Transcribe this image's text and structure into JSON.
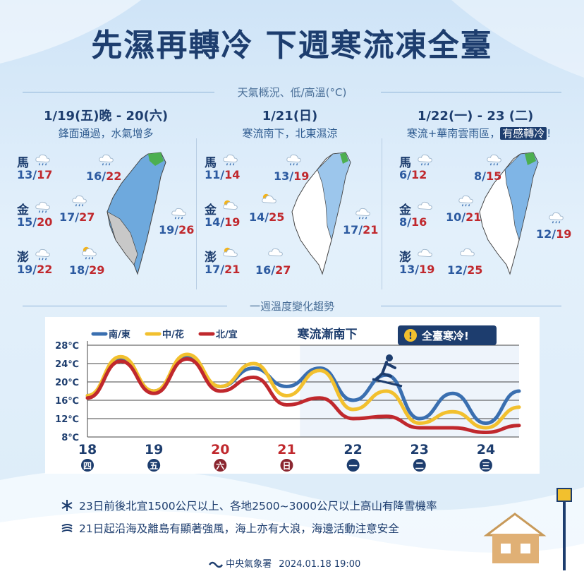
{
  "title": "先濕再轉冷 下週寒流凍全臺",
  "section1_label": "天氣概況、低/高溫(°C)",
  "section2_label": "一週溫度變化趨勢",
  "panels": [
    {
      "title": "1/19(五)晚 - 20(六)",
      "subtitle": "鋒面通過，水氣增多",
      "islands": [
        {
          "name": "馬",
          "low": "13",
          "high": "17",
          "icon": "rain-icon"
        },
        {
          "name": "金",
          "low": "15",
          "high": "20",
          "icon": "rain-icon"
        },
        {
          "name": "澎",
          "low": "19",
          "high": "22",
          "icon": "rain-icon"
        }
      ],
      "regions": [
        {
          "low": "16",
          "high": "22",
          "icon": "rain-icon"
        },
        {
          "low": "17",
          "high": "27",
          "icon": "rain-icon"
        },
        {
          "low": "19",
          "high": "26",
          "icon": "rain-icon"
        },
        {
          "low": "18",
          "high": "29",
          "icon": "sun-cloud-rain-icon"
        }
      ]
    },
    {
      "title": "1/21(日)",
      "subtitle": "寒流南下，北東濕涼",
      "islands": [
        {
          "name": "馬",
          "low": "11",
          "high": "14",
          "icon": "rain-icon"
        },
        {
          "name": "金",
          "low": "14",
          "high": "19",
          "icon": "sun-cloud-icon"
        },
        {
          "name": "澎",
          "low": "17",
          "high": "21",
          "icon": "sun-cloud-icon"
        }
      ],
      "regions": [
        {
          "low": "13",
          "high": "19",
          "icon": "rain-icon"
        },
        {
          "low": "14",
          "high": "25",
          "icon": "sun-cloud-icon"
        },
        {
          "low": "17",
          "high": "21",
          "icon": "rain-icon"
        },
        {
          "low": "16",
          "high": "27",
          "icon": "cloud-icon"
        }
      ]
    },
    {
      "title": "1/22(一) - 23 (二)",
      "subtitle_pre": "寒流+華南雲雨區，",
      "subtitle_hl": "有感轉冷",
      "subtitle_post": "!",
      "islands": [
        {
          "name": "馬",
          "low": "6",
          "high": "12",
          "icon": "rain-icon"
        },
        {
          "name": "金",
          "low": "8",
          "high": "16",
          "icon": "cloud-icon"
        },
        {
          "name": "澎",
          "low": "13",
          "high": "19",
          "icon": "cloud-icon"
        }
      ],
      "regions": [
        {
          "low": "8",
          "high": "15",
          "icon": "rain-icon"
        },
        {
          "low": "10",
          "high": "21",
          "icon": "rain-icon"
        },
        {
          "low": "12",
          "high": "19",
          "icon": "rain-icon"
        },
        {
          "low": "12",
          "high": "25",
          "icon": "cloud-icon"
        }
      ]
    }
  ],
  "chart_data": {
    "type": "line",
    "chart_title": "寒流漸南下",
    "badge": "全臺寒冷!",
    "y_ticks": [
      "28℃",
      "24℃",
      "20℃",
      "16℃",
      "12℃",
      "8℃"
    ],
    "ylim": [
      8,
      28
    ],
    "x_days": [
      "18",
      "19",
      "20",
      "21",
      "22",
      "23",
      "24"
    ],
    "x_weekdays": [
      "四",
      "五",
      "六",
      "日",
      "一",
      "二",
      "三"
    ],
    "x": [
      18,
      18.5,
      19,
      19.5,
      20,
      20.5,
      21,
      21.5,
      22,
      22.5,
      23,
      23.5,
      24,
      24.5
    ],
    "series": [
      {
        "name": "南/東",
        "color": "#3a6fb0",
        "values": [
          17,
          25,
          18,
          25.5,
          19,
          23,
          19,
          23,
          16,
          21.5,
          12,
          17.5,
          11,
          18
        ]
      },
      {
        "name": "中/花",
        "color": "#f2c02e",
        "values": [
          17,
          25.5,
          18,
          26,
          19,
          24,
          17,
          22.5,
          14,
          18,
          11,
          13.5,
          10,
          14.5
        ]
      },
      {
        "name": "北/宜",
        "color": "#c0282d",
        "values": [
          16.5,
          24.5,
          17.5,
          25,
          18,
          21,
          15,
          16.5,
          12,
          12.5,
          10,
          10,
          9,
          10.5
        ]
      }
    ]
  },
  "bullets": [
    "23日前後北宜1500公尺以上、各地2500~3000公尺以上高山有降雪機率",
    "21日起沿海及離島有顯著強風，海上亦有大浪，海邊活動注意安全"
  ],
  "footer": {
    "agency": "中央氣象署",
    "datetime": "2024.01.18 19:00"
  },
  "colors": {
    "title": "#1d3d6e",
    "low": "#2c5aa0",
    "high": "#c0282d"
  }
}
